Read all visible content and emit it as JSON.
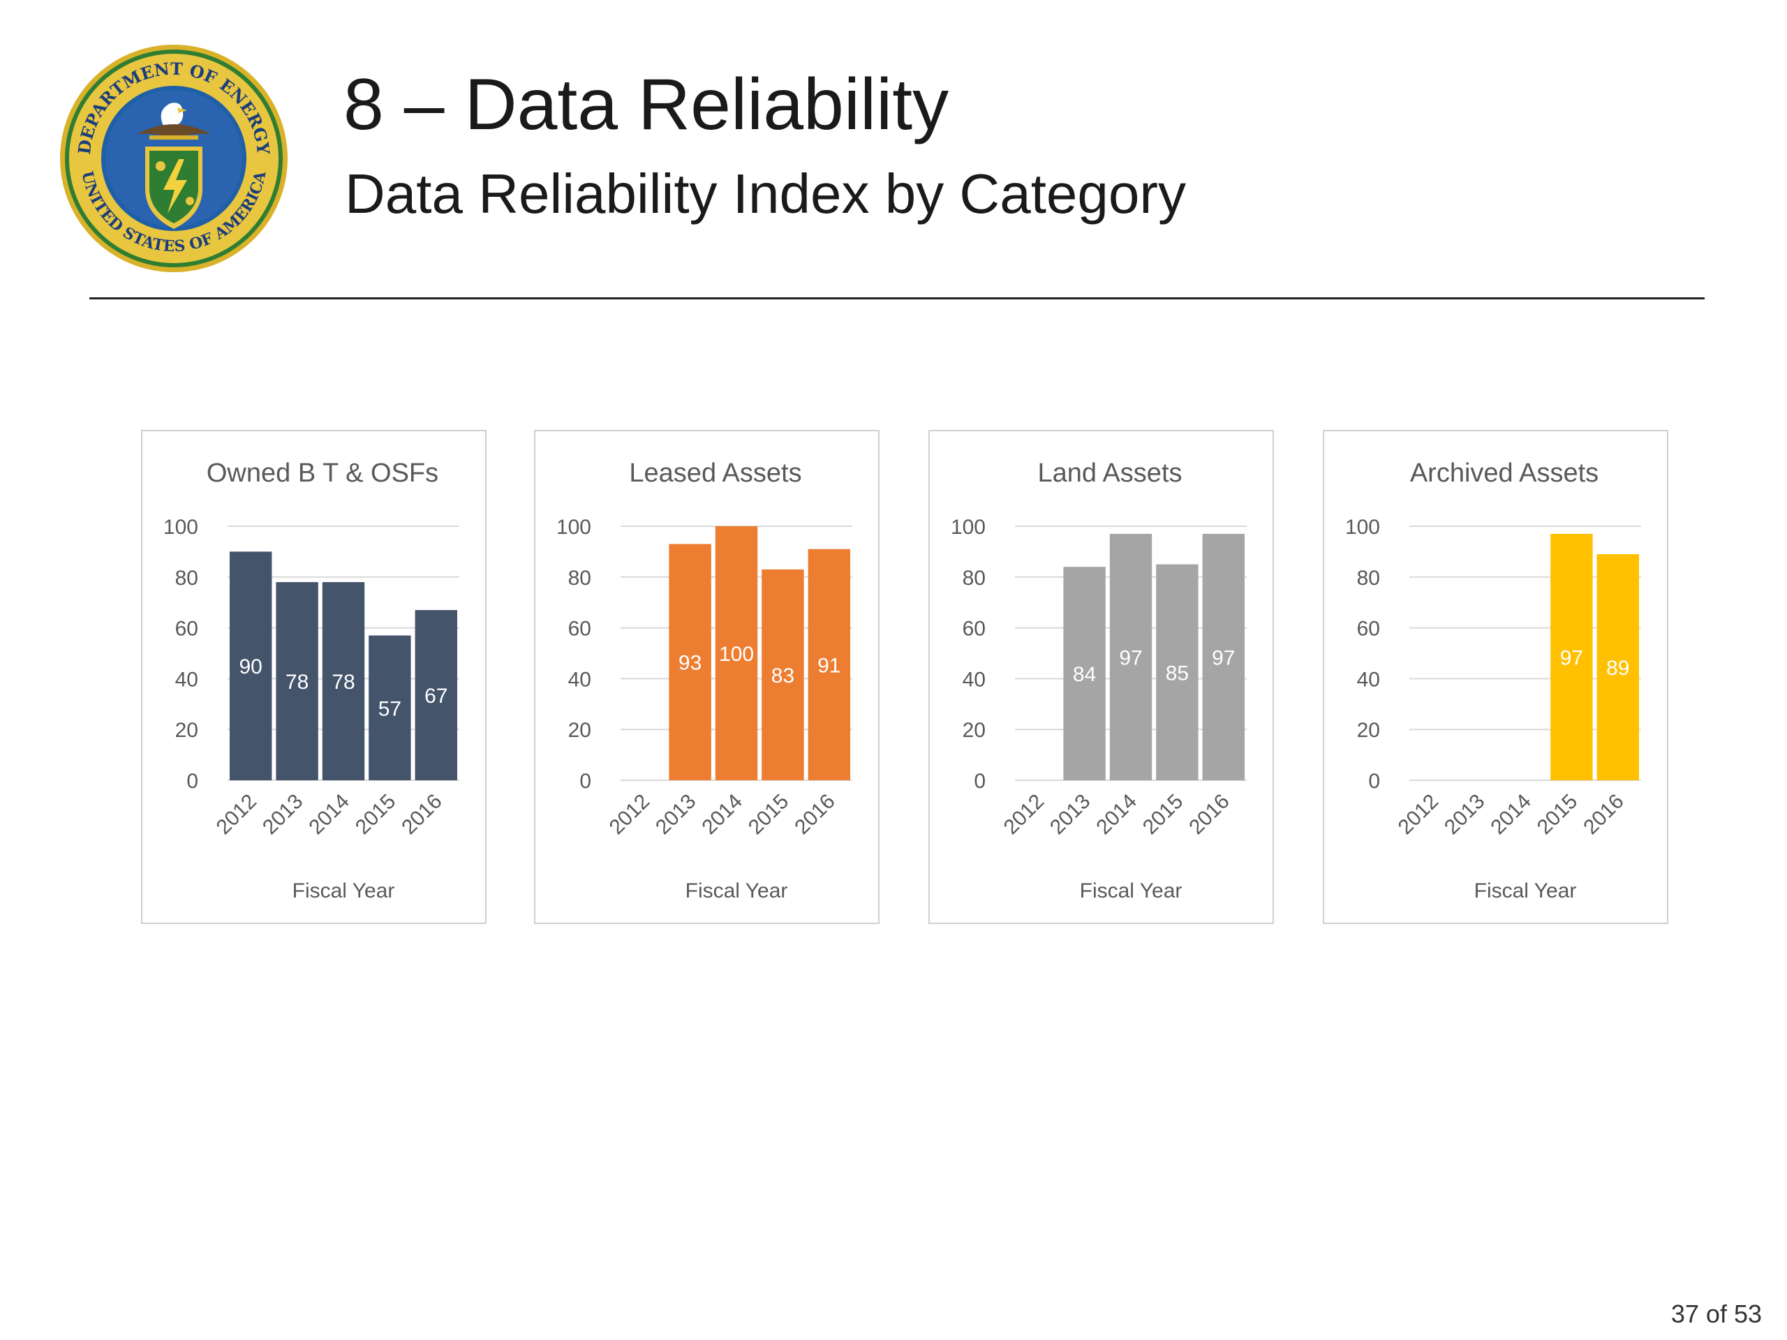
{
  "slide": {
    "title": "8 – Data Reliability",
    "subtitle": "Data Reliability Index by Category",
    "page_number": "37 of 53"
  },
  "seal": {
    "text_top": "DEPARTMENT OF ENERGY",
    "text_bottom": "UNITED STATES OF AMERICA",
    "colors": {
      "ring": "#1f5fa8",
      "gold": "#d9b22a",
      "green": "#2f7d32",
      "inner": "#2a64b0"
    }
  },
  "chart_data": [
    {
      "type": "bar",
      "title": "Owned B T & OSFs",
      "xlabel": "Fiscal Year",
      "ylabel": "",
      "categories": [
        "2012",
        "2013",
        "2014",
        "2015",
        "2016"
      ],
      "values": [
        90,
        78,
        78,
        57,
        67
      ],
      "ylim": [
        0,
        100
      ],
      "yticks": [
        0,
        20,
        40,
        60,
        80,
        100
      ],
      "color": "#44546a",
      "grid": true
    },
    {
      "type": "bar",
      "title": "Leased Assets",
      "xlabel": "Fiscal Year",
      "ylabel": "",
      "categories": [
        "2012",
        "2013",
        "2014",
        "2015",
        "2016"
      ],
      "values": [
        null,
        93,
        100,
        83,
        91
      ],
      "ylim": [
        0,
        100
      ],
      "yticks": [
        0,
        20,
        40,
        60,
        80,
        100
      ],
      "color": "#ed7d31",
      "grid": true
    },
    {
      "type": "bar",
      "title": "Land Assets",
      "xlabel": "Fiscal Year",
      "ylabel": "",
      "categories": [
        "2012",
        "2013",
        "2014",
        "2015",
        "2016"
      ],
      "values": [
        null,
        84,
        97,
        85,
        97
      ],
      "ylim": [
        0,
        100
      ],
      "yticks": [
        0,
        20,
        40,
        60,
        80,
        100
      ],
      "color": "#a5a5a5",
      "grid": true
    },
    {
      "type": "bar",
      "title": "Archived Assets",
      "xlabel": "Fiscal Year",
      "ylabel": "",
      "categories": [
        "2012",
        "2013",
        "2014",
        "2015",
        "2016"
      ],
      "values": [
        null,
        null,
        null,
        97,
        89
      ],
      "ylim": [
        0,
        100
      ],
      "yticks": [
        0,
        20,
        40,
        60,
        80,
        100
      ],
      "color": "#ffc000",
      "grid": true
    }
  ]
}
